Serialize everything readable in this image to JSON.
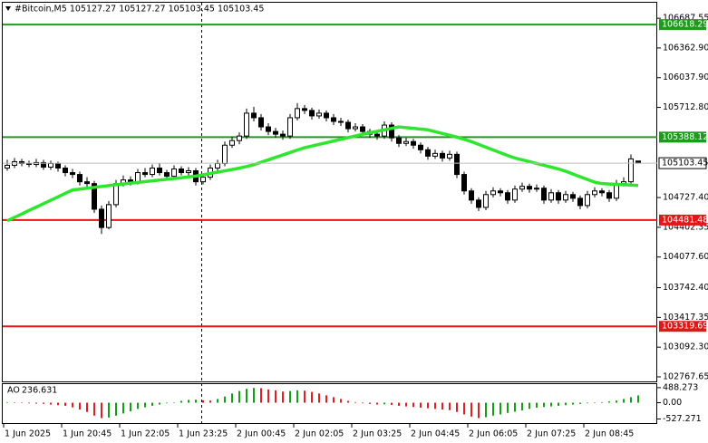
{
  "chart_data": {
    "type": "candlestick",
    "title": "#Bitcoin,M5  105127.27 105127.27 105103.45 105103.45",
    "categories": [
      "1 Jun 2025",
      null,
      null,
      null,
      null,
      null,
      null,
      null,
      "1 Jun 20:45",
      null,
      null,
      null,
      null,
      null,
      null,
      null,
      "1 Jun 22:05",
      null,
      null,
      null,
      null,
      null,
      null,
      null,
      "1 Jun 23:25",
      null,
      null,
      null,
      null,
      null,
      null,
      null,
      "2 Jun 00:45",
      null,
      null,
      null,
      null,
      null,
      null,
      null,
      "2 Jun 02:05",
      null,
      null,
      null,
      null,
      null,
      null,
      null,
      "2 Jun 03:25",
      null,
      null,
      null,
      null,
      null,
      null,
      null,
      "2 Jun 04:45",
      null,
      null,
      null,
      null,
      null,
      null,
      null,
      "2 Jun 06:05",
      null,
      null,
      null,
      null,
      null,
      null,
      null,
      "2 Jun 07:25",
      null,
      null,
      null,
      null,
      null,
      null,
      null,
      "2 Jun 08:45",
      null,
      null,
      null,
      null,
      null,
      null,
      null
    ],
    "candles": [
      [
        105050,
        105140,
        105020,
        105080
      ],
      [
        105080,
        105160,
        105050,
        105120
      ],
      [
        105120,
        105150,
        105070,
        105100
      ],
      [
        105100,
        105130,
        105060,
        105090
      ],
      [
        105090,
        105150,
        105060,
        105110
      ],
      [
        105110,
        105140,
        105030,
        105060
      ],
      [
        105060,
        105130,
        105030,
        105100
      ],
      [
        105100,
        105120,
        105010,
        105050
      ],
      [
        105050,
        105080,
        104960,
        105000
      ],
      [
        105000,
        105040,
        104940,
        104980
      ],
      [
        104980,
        105010,
        104860,
        104900
      ],
      [
        104900,
        104950,
        104840,
        104880
      ],
      [
        104880,
        104910,
        104560,
        104600
      ],
      [
        104600,
        104640,
        104330,
        104400
      ],
      [
        104400,
        104690,
        104380,
        104650
      ],
      [
        104650,
        104920,
        104620,
        104880
      ],
      [
        104880,
        104970,
        104850,
        104920
      ],
      [
        104920,
        104960,
        104860,
        104900
      ],
      [
        104900,
        105040,
        104870,
        105000
      ],
      [
        105000,
        105050,
        104950,
        104980
      ],
      [
        104980,
        105090,
        104950,
        105050
      ],
      [
        105050,
        105100,
        104970,
        105000
      ],
      [
        105000,
        105030,
        104920,
        104960
      ],
      [
        104960,
        105080,
        104930,
        105040
      ],
      [
        105040,
        105070,
        104970,
        105000
      ],
      [
        105000,
        105060,
        104970,
        105020
      ],
      [
        105020,
        105050,
        104860,
        104900
      ],
      [
        104900,
        104990,
        104870,
        104950
      ],
      [
        104950,
        105090,
        104920,
        105050
      ],
      [
        105050,
        105140,
        105020,
        105100
      ],
      [
        105100,
        105340,
        105070,
        105300
      ],
      [
        105300,
        105390,
        105270,
        105350
      ],
      [
        105350,
        105440,
        105310,
        105400
      ],
      [
        105400,
        105700,
        105370,
        105650
      ],
      [
        105650,
        105720,
        105560,
        105600
      ],
      [
        105600,
        105640,
        105460,
        105500
      ],
      [
        105500,
        105540,
        105410,
        105450
      ],
      [
        105450,
        105490,
        105380,
        105420
      ],
      [
        105420,
        105460,
        105360,
        105400
      ],
      [
        105400,
        105640,
        105370,
        105600
      ],
      [
        105600,
        105760,
        105570,
        105700
      ],
      [
        105700,
        105740,
        105640,
        105680
      ],
      [
        105680,
        105710,
        105580,
        105620
      ],
      [
        105620,
        105690,
        105590,
        105650
      ],
      [
        105650,
        105680,
        105560,
        105600
      ],
      [
        105600,
        105640,
        105520,
        105560
      ],
      [
        105560,
        105600,
        105510,
        105550
      ],
      [
        105550,
        105580,
        105440,
        105480
      ],
      [
        105480,
        105540,
        105450,
        105500
      ],
      [
        105500,
        105530,
        105410,
        105450
      ],
      [
        105450,
        105480,
        105380,
        105420
      ],
      [
        105420,
        105450,
        105360,
        105400
      ],
      [
        105400,
        105560,
        105370,
        105520
      ],
      [
        105520,
        105550,
        105340,
        105380
      ],
      [
        105380,
        105410,
        105280,
        105320
      ],
      [
        105320,
        105380,
        105290,
        105340
      ],
      [
        105340,
        105370,
        105260,
        105300
      ],
      [
        105300,
        105330,
        105210,
        105250
      ],
      [
        105250,
        105280,
        105140,
        105180
      ],
      [
        105180,
        105250,
        105150,
        105210
      ],
      [
        105210,
        105240,
        105120,
        105160
      ],
      [
        105160,
        105240,
        105130,
        105200
      ],
      [
        105200,
        105230,
        104940,
        104980
      ],
      [
        104980,
        105010,
        104760,
        104800
      ],
      [
        104800,
        104830,
        104660,
        104700
      ],
      [
        104700,
        104730,
        104580,
        104620
      ],
      [
        104620,
        104800,
        104590,
        104760
      ],
      [
        104760,
        104840,
        104730,
        104800
      ],
      [
        104800,
        104830,
        104740,
        104780
      ],
      [
        104780,
        104810,
        104660,
        104700
      ],
      [
        104700,
        104860,
        104670,
        104820
      ],
      [
        104820,
        104890,
        104790,
        104850
      ],
      [
        104850,
        104880,
        104780,
        104820
      ],
      [
        104820,
        104870,
        104790,
        104830
      ],
      [
        104830,
        104860,
        104660,
        104700
      ],
      [
        104700,
        104820,
        104670,
        104780
      ],
      [
        104780,
        104810,
        104660,
        104700
      ],
      [
        104700,
        104800,
        104670,
        104760
      ],
      [
        104760,
        104790,
        104680,
        104720
      ],
      [
        104720,
        104750,
        104600,
        104640
      ],
      [
        104640,
        104800,
        104610,
        104760
      ],
      [
        104760,
        104840,
        104730,
        104800
      ],
      [
        104800,
        104830,
        104740,
        104780
      ],
      [
        104780,
        104810,
        104680,
        104720
      ],
      [
        104720,
        104920,
        104690,
        104880
      ],
      [
        104880,
        104950,
        104850,
        104900
      ],
      [
        104900,
        105200,
        104870,
        105150
      ],
      [
        105127.27,
        105127.27,
        105103.45,
        105103.45
      ]
    ],
    "candle_color": "#000000",
    "bull_fill": "#ffffff",
    "bear_fill": "#000000",
    "ylim": [
      102708,
      106788
    ],
    "yticks": [
      106687.55,
      {
        "value": 106362.9,
        "label": "106362.90"
      },
      {
        "value": 106037.9,
        "label": "106037.90"
      },
      {
        "value": 105712.8,
        "label": "105712.80"
      },
      {
        "value": 104727.4,
        "label": "104727.40"
      },
      104402.35,
      {
        "value": 104077.6,
        "label": "104077.60"
      },
      {
        "value": 103742.4,
        "label": "103742.40"
      },
      103417.35,
      {
        "value": 103092.3,
        "label": "103092.30"
      },
      102767.65
    ],
    "moving_average": {
      "color": "#2ee62e",
      "values": [
        104474,
        104511,
        104548,
        104586,
        104623,
        104661,
        104698,
        104735,
        104773,
        104810,
        104820,
        104830,
        104839,
        104849,
        104858,
        104868,
        104876,
        104885,
        104893,
        104902,
        104910,
        104919,
        104927,
        104936,
        104944,
        104953,
        104962,
        104976,
        104991,
        105005,
        105020,
        105034,
        105049,
        105067,
        105087,
        105113,
        105140,
        105167,
        105193,
        105220,
        105247,
        105272,
        105291,
        105309,
        105327,
        105346,
        105364,
        105382,
        105401,
        105420,
        105436,
        105452,
        105468,
        105484,
        105500,
        105492,
        105484,
        105476,
        105468,
        105448,
        105428,
        105408,
        105388,
        105364,
        105339,
        105309,
        105278,
        105248,
        105217,
        105187,
        105160,
        105140,
        105120,
        105100,
        105080,
        105060,
        105040,
        105015,
        104985,
        104955,
        104925,
        104895,
        104880,
        104876,
        104872,
        104868,
        104864,
        104860
      ]
    },
    "levels": [
      {
        "value": 106618.29,
        "color": "#1f9a1f"
      },
      {
        "value": 105388.12,
        "color": "#1f9a1f"
      },
      {
        "value": 104481.48,
        "color": "#e01818"
      },
      {
        "value": 103319.69,
        "color": "#e01818"
      }
    ],
    "oscillator": {
      "name": "AO",
      "up_color": "#14a014",
      "down_color": "#e02020",
      "ylim": [
        -660,
        603
      ],
      "yticks": [
        488.273,
        {
          "value": 0,
          "label": "0.00"
        },
        -527.271
      ],
      "values": [
        20,
        10,
        -10,
        -20,
        -30,
        -40,
        -60,
        -80,
        -100,
        -150,
        -220,
        -300,
        -420,
        -500,
        -480,
        -420,
        -350,
        -280,
        -200,
        -150,
        -100,
        -60,
        -20,
        10,
        60,
        90,
        100,
        80,
        70,
        120,
        200,
        300,
        380,
        450,
        480,
        470,
        430,
        400,
        360,
        380,
        400,
        390,
        350,
        300,
        240,
        180,
        120,
        60,
        20,
        -20,
        -40,
        -60,
        -50,
        -70,
        -100,
        -120,
        -140,
        -160,
        -180,
        -200,
        -220,
        -240,
        -300,
        -380,
        -450,
        -500,
        -470,
        -420,
        -380,
        -330,
        -290,
        -250,
        -200,
        -160,
        -140,
        -120,
        -100,
        -80,
        -60,
        -40,
        -20,
        0,
        20,
        40,
        70,
        120,
        180,
        236.631
      ]
    }
  }
}
